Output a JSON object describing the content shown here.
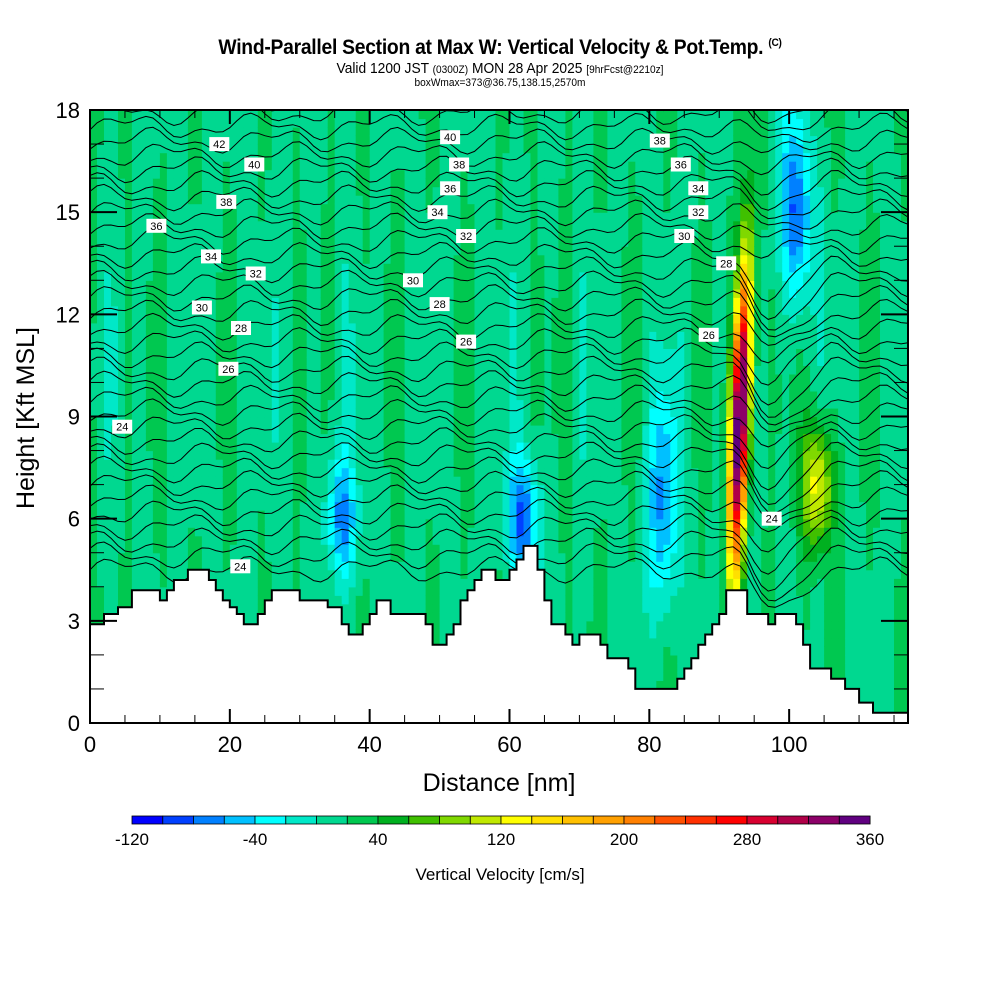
{
  "chart_data": {
    "type": "heatmap",
    "title": "Wind-Parallel Section at Max W: Vertical Velocity & Pot.Temp.",
    "title_mark": "(C)",
    "subtitle_main": "Valid 1200 JST",
    "subtitle_utc": "(0300Z)",
    "subtitle_date": "MON 28 Apr 2025",
    "subtitle_fcst": "[9hrFcst@2210z]",
    "subtitle2": "boxWmax=373@36.75,138.15,2570m",
    "xlabel": "Distance [nm]",
    "ylabel": "Height [Kft MSL]",
    "xlim": [
      0,
      117
    ],
    "ylim": [
      0,
      18
    ],
    "x_ticks": [
      0,
      20,
      40,
      60,
      80,
      100
    ],
    "y_ticks": [
      0,
      3,
      6,
      9,
      12,
      15,
      18
    ],
    "colorbar": {
      "label": "Vertical Velocity [cm/s]",
      "min": -120,
      "step": 20,
      "tick_labels": [
        "-120",
        "-40",
        "40",
        "120",
        "200",
        "280",
        "360"
      ],
      "tick_values": [
        -120,
        -40,
        40,
        120,
        200,
        280,
        360
      ],
      "colors": [
        "#0000ff",
        "#0040ff",
        "#0080ff",
        "#00c0ff",
        "#00ffff",
        "#00e8c8",
        "#00d890",
        "#00c850",
        "#00b020",
        "#40c000",
        "#80d800",
        "#c0e800",
        "#ffff00",
        "#ffe000",
        "#ffc000",
        "#ffa000",
        "#ff8000",
        "#ff5000",
        "#ff3000",
        "#ff0000",
        "#d80030",
        "#b00048",
        "#8c0068",
        "#600080"
      ]
    },
    "terrain_kft": [
      [
        0,
        2.9
      ],
      [
        2,
        3.2
      ],
      [
        4,
        3.4
      ],
      [
        6,
        3.9
      ],
      [
        10,
        3.6
      ],
      [
        11,
        3.9
      ],
      [
        12,
        4.2
      ],
      [
        14,
        4.5
      ],
      [
        17,
        4.2
      ],
      [
        18,
        3.9
      ],
      [
        19,
        3.6
      ],
      [
        20,
        3.4
      ],
      [
        21,
        3.2
      ],
      [
        22,
        2.9
      ],
      [
        24,
        3.2
      ],
      [
        25,
        3.6
      ],
      [
        26,
        3.9
      ],
      [
        30,
        3.6
      ],
      [
        34,
        3.4
      ],
      [
        36,
        2.9
      ],
      [
        37,
        2.6
      ],
      [
        39,
        2.9
      ],
      [
        40,
        3.2
      ],
      [
        41,
        3.6
      ],
      [
        43,
        3.2
      ],
      [
        48,
        2.9
      ],
      [
        49,
        2.3
      ],
      [
        51,
        2.6
      ],
      [
        52,
        2.9
      ],
      [
        53,
        3.6
      ],
      [
        54,
        3.9
      ],
      [
        55,
        4.2
      ],
      [
        56,
        4.5
      ],
      [
        58,
        4.2
      ],
      [
        60,
        4.5
      ],
      [
        61,
        4.8
      ],
      [
        62,
        5.2
      ],
      [
        64,
        4.5
      ],
      [
        65,
        3.6
      ],
      [
        66,
        2.9
      ],
      [
        68,
        2.6
      ],
      [
        69,
        2.3
      ],
      [
        70,
        2.6
      ],
      [
        73,
        2.3
      ],
      [
        74,
        1.9
      ],
      [
        77,
        1.6
      ],
      [
        78,
        1.0
      ],
      [
        84,
        1.3
      ],
      [
        85,
        1.6
      ],
      [
        86,
        1.9
      ],
      [
        87,
        2.3
      ],
      [
        88,
        2.6
      ],
      [
        89,
        2.9
      ],
      [
        90,
        3.2
      ],
      [
        91,
        3.9
      ],
      [
        94,
        3.2
      ],
      [
        97,
        2.9
      ],
      [
        98,
        3.2
      ],
      [
        101,
        2.9
      ],
      [
        102,
        2.3
      ],
      [
        103,
        1.6
      ],
      [
        106,
        1.3
      ],
      [
        108,
        1.0
      ],
      [
        110,
        0.6
      ],
      [
        112,
        0.3
      ],
      [
        114,
        0.3
      ],
      [
        117,
        0.3
      ]
    ],
    "w_features": [
      {
        "name": "updraft-core",
        "x": 93,
        "z_range": [
          4,
          14
        ],
        "max_cms": 373
      },
      {
        "name": "secondary-updraft",
        "x": 104,
        "z_range": [
          5,
          9
        ],
        "max_cms": 120
      },
      {
        "name": "downdraft-top",
        "x": 101,
        "z_range": [
          12,
          18
        ],
        "min_cms": -100
      },
      {
        "name": "downdraft-mid",
        "x": 36,
        "z_range": [
          4,
          8
        ],
        "min_cms": -80
      },
      {
        "name": "downdraft-center",
        "x": 62,
        "z_range": [
          4,
          8
        ],
        "min_cms": -100
      },
      {
        "name": "downdraft-78",
        "x": 82,
        "z_range": [
          3,
          10
        ],
        "min_cms": -80
      }
    ],
    "theta_contour_labels": [
      {
        "value": "42",
        "x": 18.5,
        "z": 17.0
      },
      {
        "value": "40",
        "x": 23.5,
        "z": 16.4
      },
      {
        "value": "38",
        "x": 19.5,
        "z": 15.3
      },
      {
        "value": "36",
        "x": 9.5,
        "z": 14.6
      },
      {
        "value": "34",
        "x": 17.3,
        "z": 13.7
      },
      {
        "value": "32",
        "x": 23.7,
        "z": 13.2
      },
      {
        "value": "30",
        "x": 16.0,
        "z": 12.2
      },
      {
        "value": "28",
        "x": 21.6,
        "z": 11.6
      },
      {
        "value": "26",
        "x": 19.8,
        "z": 10.4
      },
      {
        "value": "24",
        "x": 4.6,
        "z": 8.7
      },
      {
        "value": "24",
        "x": 21.5,
        "z": 4.6
      },
      {
        "value": "40",
        "x": 51.5,
        "z": 17.2
      },
      {
        "value": "38",
        "x": 52.8,
        "z": 16.4
      },
      {
        "value": "36",
        "x": 51.5,
        "z": 15.7
      },
      {
        "value": "34",
        "x": 49.7,
        "z": 15.0
      },
      {
        "value": "32",
        "x": 53.8,
        "z": 14.3
      },
      {
        "value": "30",
        "x": 46.2,
        "z": 13.0
      },
      {
        "value": "28",
        "x": 50.0,
        "z": 12.3
      },
      {
        "value": "26",
        "x": 53.8,
        "z": 11.2
      },
      {
        "value": "38",
        "x": 81.5,
        "z": 17.1
      },
      {
        "value": "36",
        "x": 84.5,
        "z": 16.4
      },
      {
        "value": "34",
        "x": 87.0,
        "z": 15.7
      },
      {
        "value": "32",
        "x": 87.0,
        "z": 15.0
      },
      {
        "value": "30",
        "x": 85.0,
        "z": 14.3
      },
      {
        "value": "28",
        "x": 91.0,
        "z": 13.5
      },
      {
        "value": "26",
        "x": 88.5,
        "z": 11.4
      },
      {
        "value": "24",
        "x": 97.5,
        "z": 6.0
      }
    ]
  }
}
